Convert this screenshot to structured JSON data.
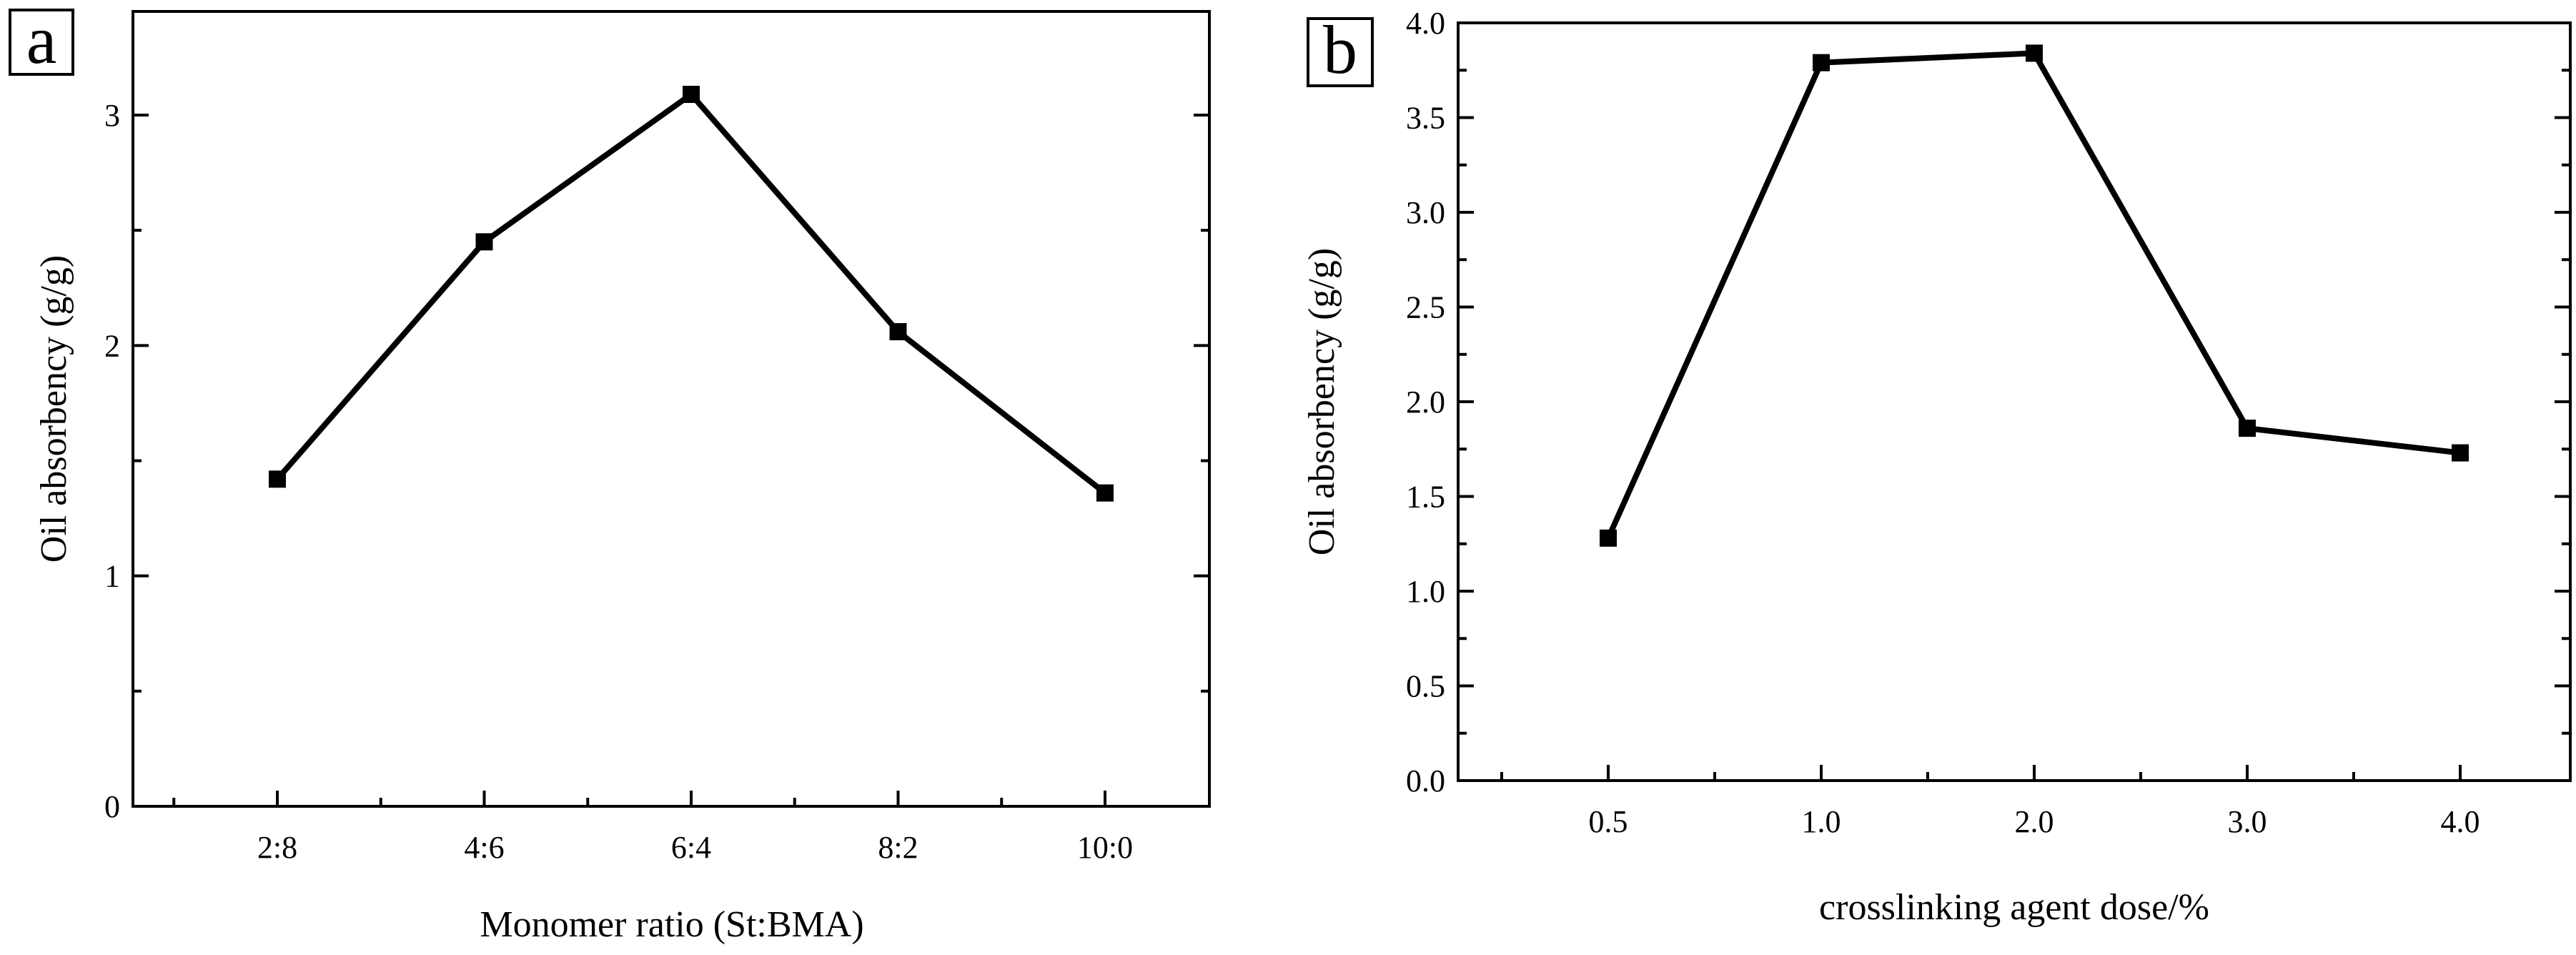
{
  "chart_data": [
    {
      "panel_label": "a",
      "type": "line",
      "title": "",
      "xlabel": "Monomer ratio (St:BMA)",
      "ylabel": "Oil absorbency (g/g)",
      "categories": [
        "2:8",
        "4:6",
        "6:4",
        "8:2",
        "10:0"
      ],
      "values": [
        1.42,
        2.45,
        3.09,
        2.06,
        1.36
      ],
      "ylim": [
        0,
        3.45
      ],
      "yticks": [
        0,
        1,
        2,
        3
      ],
      "ytick_labels": [
        "0",
        "1",
        "2",
        "3"
      ],
      "marker": "square",
      "grid": false,
      "legend": "none"
    },
    {
      "panel_label": "b",
      "type": "line",
      "title": "",
      "xlabel": "crosslinking agent dose/%",
      "ylabel": "Oil absorbency (g/g)",
      "categories": [
        "0.5",
        "1.0",
        "2.0",
        "3.0",
        "4.0"
      ],
      "values": [
        1.28,
        3.79,
        3.84,
        1.86,
        1.73
      ],
      "ylim": [
        0,
        4.0
      ],
      "yticks": [
        0,
        0.5,
        1.0,
        1.5,
        2.0,
        2.5,
        3.0,
        3.5,
        4.0
      ],
      "ytick_labels": [
        "0.0",
        "0.5",
        "1.0",
        "1.5",
        "2.0",
        "2.5",
        "3.0",
        "3.5",
        "4.0"
      ],
      "marker": "square",
      "grid": false,
      "legend": "none"
    }
  ]
}
